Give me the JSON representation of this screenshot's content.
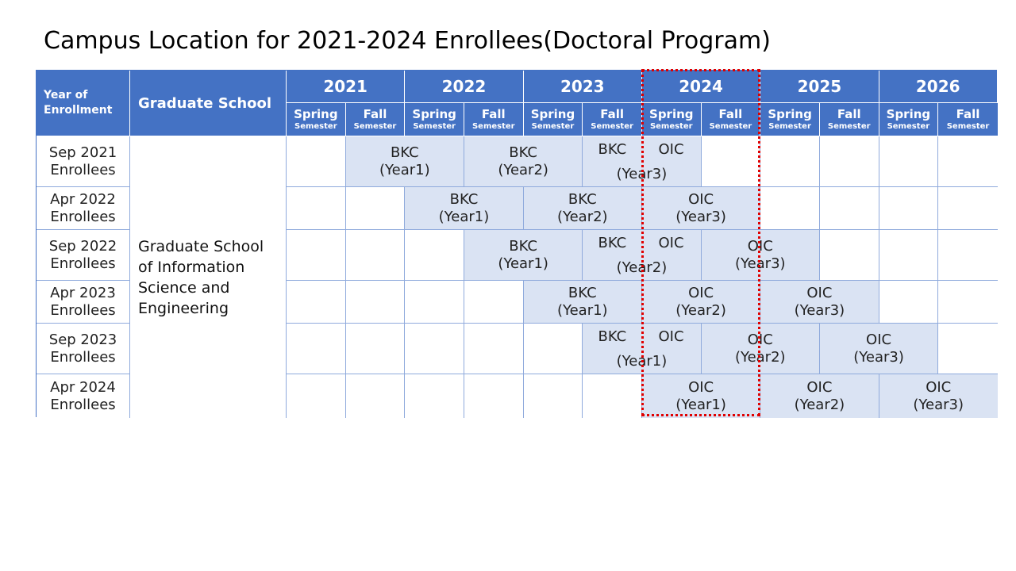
{
  "title": "Campus Location for 2021-2024 Enrollees(Doctoral Program)",
  "header": {
    "year_of_enrollment": "Year of\nEnrollment",
    "graduate_school": "Graduate School",
    "years": [
      "2021",
      "2022",
      "2023",
      "2024",
      "2025",
      "2026"
    ],
    "spring": "Spring",
    "fall": "Fall",
    "semester": "Semester"
  },
  "school": "Graduate School\nof Information\nScience and\nEngineering",
  "rows": [
    {
      "l1": "Sep 2021",
      "l2": "Enrollees"
    },
    {
      "l1": "Apr 2022",
      "l2": "Enrollees"
    },
    {
      "l1": "Sep 2022",
      "l2": "Enrollees"
    },
    {
      "l1": "Apr 2023",
      "l2": "Enrollees"
    },
    {
      "l1": "Sep 2023",
      "l2": "Enrollees"
    },
    {
      "l1": "Apr 2024",
      "l2": "Enrollees"
    }
  ],
  "cells": {
    "bkc": "BKC",
    "oic": "OIC",
    "year1": "(Year1)",
    "year2": "(Year2)",
    "year3": "(Year3)"
  },
  "colors": {
    "header_bg": "#4472c4",
    "fill_bg": "#dae3f3",
    "highlight": "#e00000"
  }
}
